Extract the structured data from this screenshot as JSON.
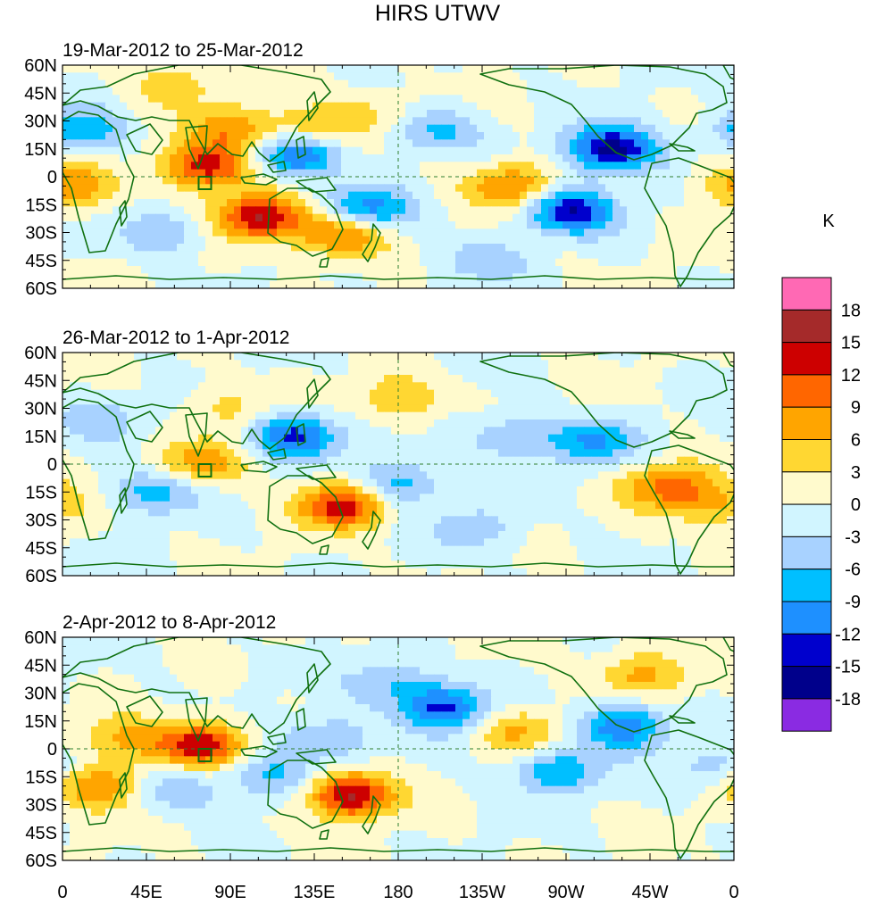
{
  "title": "HIRS UTWV",
  "panels": [
    {
      "id": "p1",
      "period": "19-Mar-2012 to 25-Mar-2012"
    },
    {
      "id": "p2",
      "period": "26-Mar-2012 to 1-Apr-2012"
    },
    {
      "id": "p3",
      "period": "2-Apr-2012 to 8-Apr-2012"
    }
  ],
  "axes": {
    "lat_labels": [
      "60N",
      "45N",
      "30N",
      "15N",
      "0",
      "15S",
      "30S",
      "45S",
      "60S"
    ],
    "lat_values": [
      60,
      45,
      30,
      15,
      0,
      -15,
      -30,
      -45,
      -60
    ],
    "lon_labels": [
      "0",
      "45E",
      "90E",
      "135E",
      "180",
      "135W",
      "90W",
      "45W",
      "0"
    ],
    "lon_values": [
      0,
      45,
      90,
      135,
      180,
      225,
      270,
      315,
      360
    ]
  },
  "colorbar": {
    "unit": "K",
    "labels": [
      "18",
      "15",
      "12",
      "9",
      "6",
      "3",
      "0",
      "-3",
      "-6",
      "-9",
      "-12",
      "-15",
      "-18"
    ],
    "colors": [
      "#ff69b4",
      "#a52a2a",
      "#cd0000",
      "#ff6600",
      "#ffa500",
      "#ffd732",
      "#fffacd",
      "#d1f5ff",
      "#a8d2ff",
      "#00bfff",
      "#1e90ff",
      "#0000cd",
      "#00008b",
      "#8a2be2"
    ]
  },
  "chart_data": {
    "type": "heatmap",
    "variable": "UTWV anomaly",
    "unit": "K",
    "color_levels": [
      -18,
      -15,
      -12,
      -9,
      -6,
      -3,
      0,
      3,
      6,
      9,
      12,
      15,
      18
    ],
    "lon_range": [
      0,
      360
    ],
    "lat_range": [
      -60,
      60
    ],
    "features": [
      [
        {
          "lon": 78,
          "lat": 5,
          "v": 14
        },
        {
          "lon": 105,
          "lat": -22,
          "v": 15
        },
        {
          "lon": 150,
          "lat": -30,
          "v": 12
        },
        {
          "lon": 90,
          "lat": 25,
          "v": 8
        },
        {
          "lon": 130,
          "lat": 25,
          "v": 7
        },
        {
          "lon": 5,
          "lat": -5,
          "v": 8
        },
        {
          "lon": 240,
          "lat": -5,
          "v": 10
        },
        {
          "lon": 165,
          "lat": 35,
          "v": 4
        },
        {
          "lon": 60,
          "lat": 50,
          "v": 5
        },
        {
          "lon": 125,
          "lat": 12,
          "v": -13
        },
        {
          "lon": 162,
          "lat": -18,
          "v": -12
        },
        {
          "lon": 272,
          "lat": -18,
          "v": -15
        },
        {
          "lon": 295,
          "lat": 15,
          "v": -17
        },
        {
          "lon": 200,
          "lat": 25,
          "v": -7
        },
        {
          "lon": 10,
          "lat": 25,
          "v": -8
        },
        {
          "lon": 55,
          "lat": -30,
          "v": -6
        },
        {
          "lon": 225,
          "lat": -45,
          "v": -5
        }
      ],
      [
        {
          "lon": 150,
          "lat": -22,
          "v": 14
        },
        {
          "lon": 75,
          "lat": 0,
          "v": 8
        },
        {
          "lon": 325,
          "lat": -12,
          "v": 10
        },
        {
          "lon": 180,
          "lat": 35,
          "v": 6
        },
        {
          "lon": 90,
          "lat": 30,
          "v": 4
        },
        {
          "lon": 350,
          "lat": -22,
          "v": 6
        },
        {
          "lon": 125,
          "lat": 15,
          "v": -13
        },
        {
          "lon": 180,
          "lat": -10,
          "v": -8
        },
        {
          "lon": 285,
          "lat": 12,
          "v": -9
        },
        {
          "lon": 240,
          "lat": 15,
          "v": -6
        },
        {
          "lon": 50,
          "lat": -15,
          "v": -8
        },
        {
          "lon": 220,
          "lat": -35,
          "v": -5
        },
        {
          "lon": 20,
          "lat": 25,
          "v": -5
        }
      ],
      [
        {
          "lon": 155,
          "lat": -25,
          "v": 16
        },
        {
          "lon": 73,
          "lat": 2,
          "v": 15
        },
        {
          "lon": 20,
          "lat": -20,
          "v": 10
        },
        {
          "lon": 30,
          "lat": 5,
          "v": 6
        },
        {
          "lon": 245,
          "lat": 10,
          "v": 7
        },
        {
          "lon": 310,
          "lat": 40,
          "v": 7
        },
        {
          "lon": 205,
          "lat": 22,
          "v": -13
        },
        {
          "lon": 300,
          "lat": 12,
          "v": -12
        },
        {
          "lon": 265,
          "lat": -12,
          "v": -9
        },
        {
          "lon": 140,
          "lat": 5,
          "v": -7
        },
        {
          "lon": 110,
          "lat": -15,
          "v": -7
        },
        {
          "lon": 175,
          "lat": 35,
          "v": -6
        },
        {
          "lon": 60,
          "lat": -22,
          "v": -6
        },
        {
          "lon": 350,
          "lat": -10,
          "v": -5
        }
      ]
    ]
  }
}
